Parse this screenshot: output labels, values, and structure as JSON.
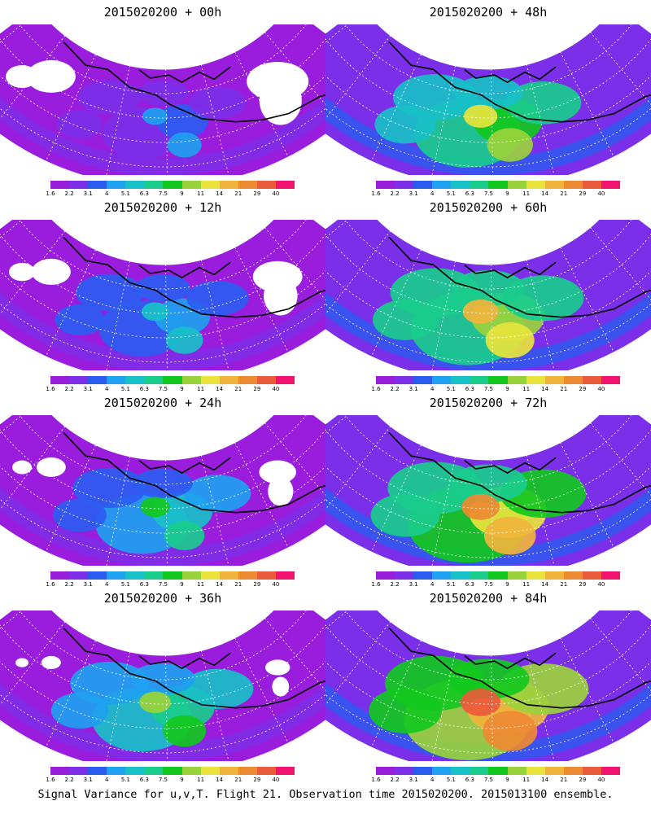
{
  "panels": [
    {
      "title": "2015020200 + 00h",
      "level": 0
    },
    {
      "title": "2015020200 + 48h",
      "level": 4
    },
    {
      "title": "2015020200 + 12h",
      "level": 1
    },
    {
      "title": "2015020200 + 60h",
      "level": 5
    },
    {
      "title": "2015020200 + 24h",
      "level": 2
    },
    {
      "title": "2015020200 + 72h",
      "level": 6
    },
    {
      "title": "2015020200 + 36h",
      "level": 3
    },
    {
      "title": "2015020200 + 84h",
      "level": 7
    }
  ],
  "colorbar": {
    "labels": [
      "1.6",
      "2.2",
      "3.1",
      "4",
      "5.1",
      "6.3",
      "7.5",
      "9",
      "11",
      "14",
      "21",
      "29",
      "40"
    ],
    "colors": [
      "#9a1dde",
      "#7b2fe8",
      "#2b5cf0",
      "#1ea1f0",
      "#18c0c8",
      "#19cc8c",
      "#12c81e",
      "#9ad23c",
      "#e8e43c",
      "#f0b43c",
      "#ee8a32",
      "#ec5a3c",
      "#f0146e"
    ]
  },
  "footer": "Signal Variance for u,v,T. Flight 21. Observation time 2015020200. 2015013100 ensemble."
}
